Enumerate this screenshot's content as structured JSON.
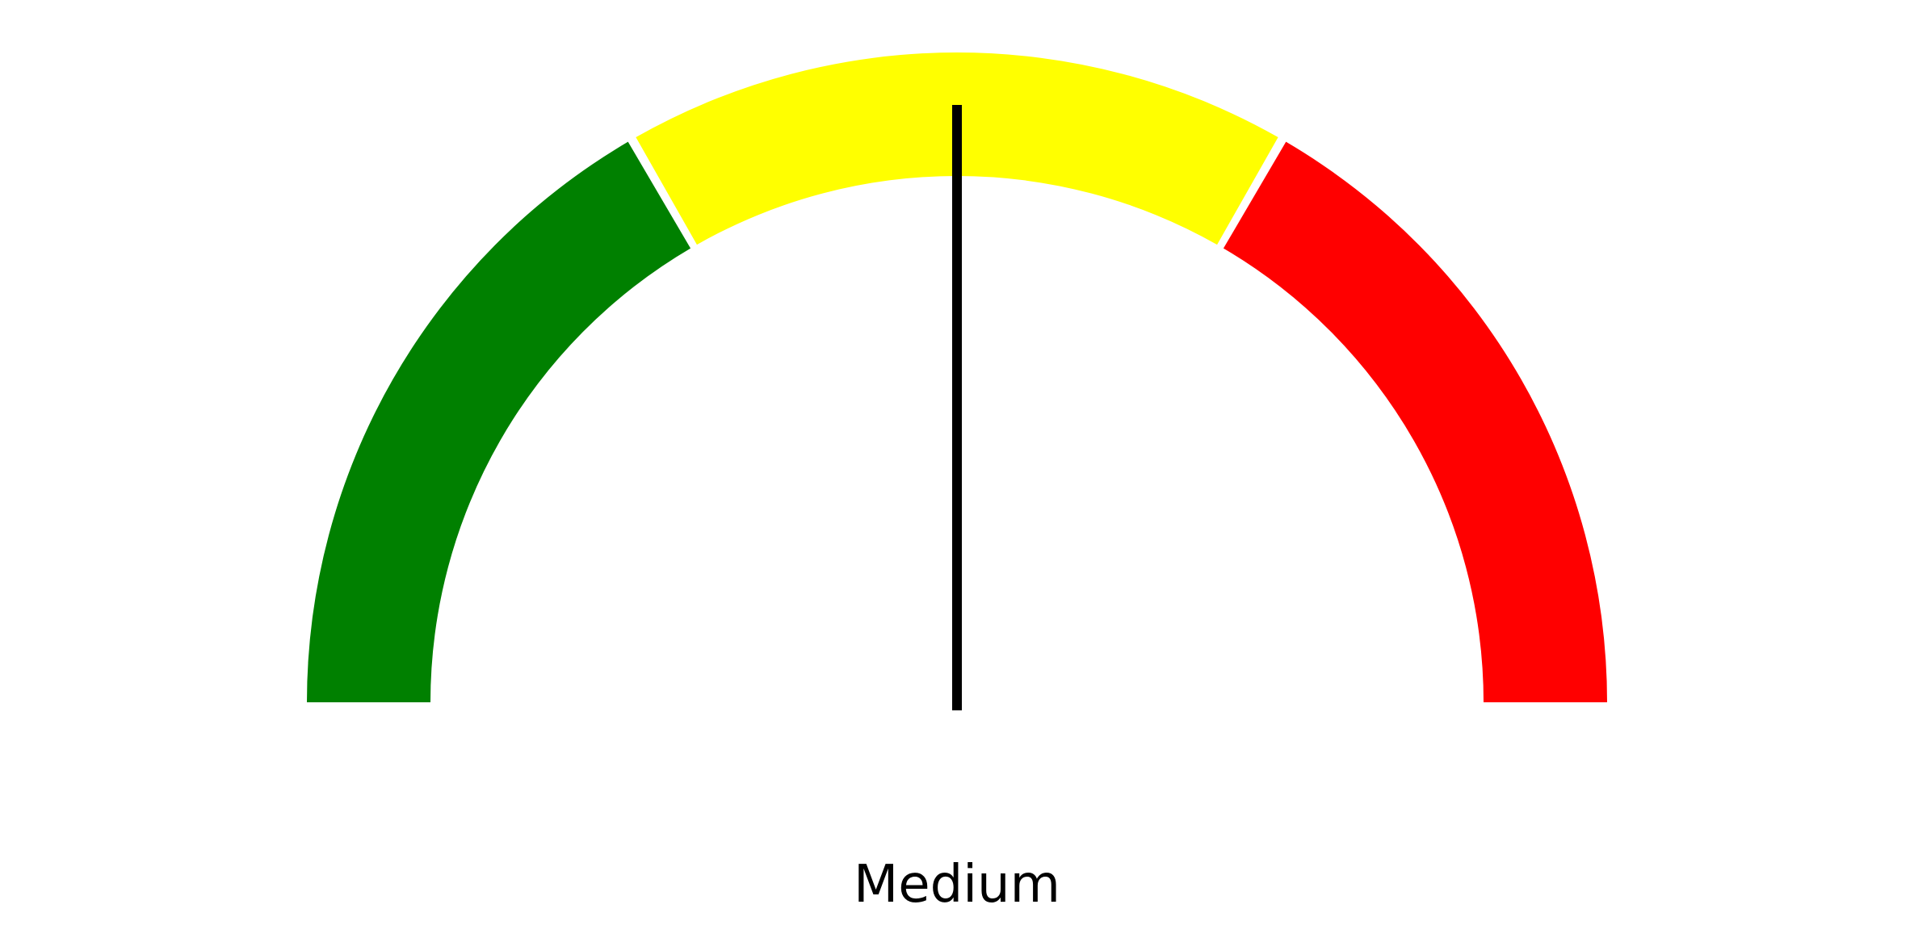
{
  "chart_data": {
    "type": "gauge",
    "min": 0,
    "max": 3,
    "segments": [
      {
        "from": 0,
        "to": 1,
        "color": "#008000"
      },
      {
        "from": 1,
        "to": 2,
        "color": "#ffff00"
      },
      {
        "from": 2,
        "to": 3,
        "color": "#ff0000"
      }
    ],
    "needle_value": 1.5,
    "needle_color": "#000000",
    "label": "Medium"
  }
}
